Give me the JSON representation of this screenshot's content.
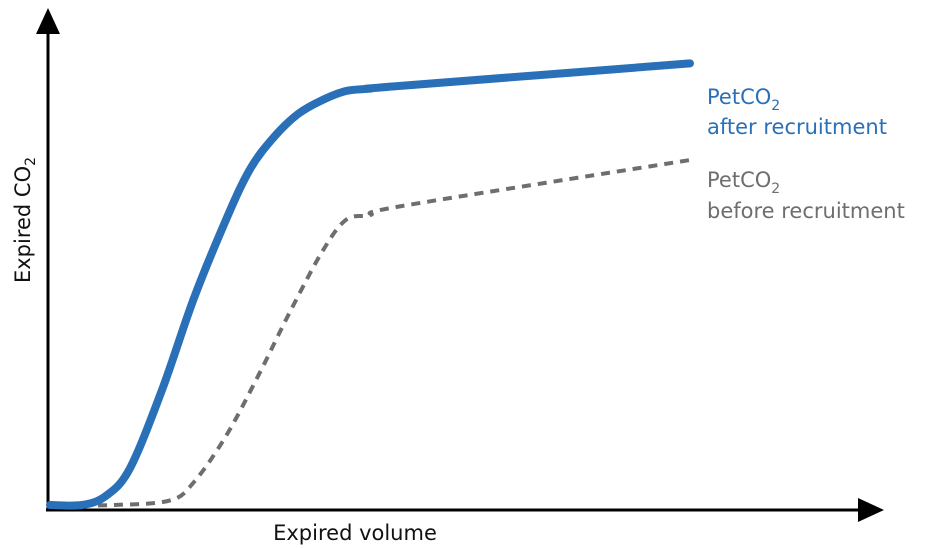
{
  "chart_data": {
    "type": "line",
    "title": "",
    "xlabel": "Expired volume",
    "ylabel": {
      "main": "Expired CO",
      "sub": "2"
    },
    "xlim": [
      0,
      100
    ],
    "ylim": [
      0,
      100
    ],
    "grid": false,
    "legend": "inline-right",
    "series": [
      {
        "key": "after",
        "label_line1_main": "PetCO",
        "label_line1_sub": "2",
        "label_line2": "after recruitment",
        "color": "#2a70b8",
        "dash": "solid",
        "x": [
          0,
          4,
          7,
          10,
          14,
          18,
          22,
          25,
          28,
          31,
          34,
          37,
          40,
          43,
          80
        ],
        "y": [
          0,
          0,
          2,
          8,
          25,
          45,
          62,
          73,
          80,
          85,
          88,
          90,
          90.5,
          91,
          96
        ]
      },
      {
        "key": "before",
        "label_line1_main": "PetCO",
        "label_line1_sub": "2",
        "label_line2": "before recruitment",
        "color": "#6e6e6e",
        "dash": "dashed",
        "x": [
          0,
          8,
          15,
          18,
          22,
          26,
          30,
          34,
          37,
          40,
          44,
          80
        ],
        "y": [
          0,
          0,
          1,
          5,
          15,
          28,
          42,
          55,
          62,
          63,
          65,
          75
        ]
      }
    ]
  }
}
